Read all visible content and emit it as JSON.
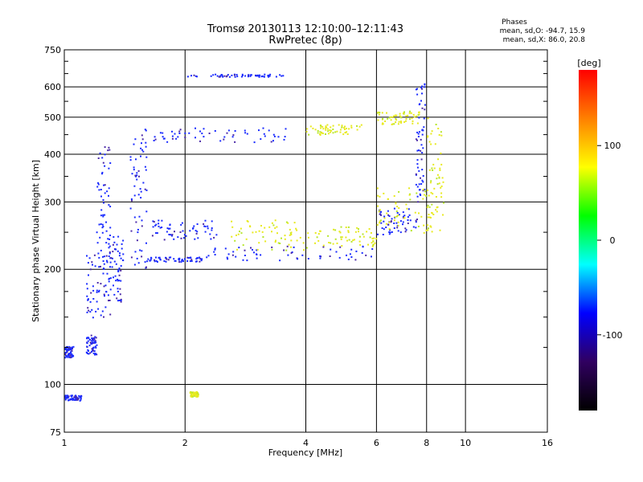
{
  "chart_data": {
    "type": "scatter",
    "title": "Tromsø 20130113 12:10:00–12:11:43",
    "subtitle": "RwPretec (8p)",
    "xlabel": "Frequency [MHz]",
    "ylabel": "Stationary phase Virtual Height [km]",
    "xscale": "log2",
    "yscale": "log",
    "xlim": [
      1,
      16
    ],
    "ylim": [
      75,
      750
    ],
    "grid": true,
    "x_ticks": [
      1,
      2,
      4,
      6,
      8,
      10,
      16
    ],
    "x_tick_labels": [
      "1",
      "2",
      "4",
      "6",
      "8",
      "10",
      "16"
    ],
    "x_gridlines": [
      2,
      4,
      6,
      8,
      10
    ],
    "y_ticks": [
      75,
      100,
      200,
      300,
      400,
      500,
      600,
      750
    ],
    "y_tick_labels": [
      "75",
      "100",
      "200",
      "300",
      "400",
      "500",
      "600",
      "750"
    ],
    "y_gridlines": [
      100,
      200,
      300,
      400,
      500,
      600
    ],
    "phase_box": {
      "title": "Phases",
      "line1": "mean, sd,O: -94.7, 15.9",
      "line2": "mean, sd,X:  86.0, 20.8"
    },
    "colorbar": {
      "label": "[deg]",
      "range": [
        -180,
        180
      ],
      "ticks": [
        100,
        0,
        -100
      ],
      "tick_labels": [
        "100",
        "0",
        "-100"
      ],
      "colors": [
        "#ff0000",
        "#ff8000",
        "#ffff00",
        "#00ff00",
        "#00ffff",
        "#0000ff",
        "#300060",
        "#000000"
      ]
    },
    "series": [
      {
        "mode": "O",
        "color": "#1a2bff",
        "color_secondary": "#4b2aa8",
        "segments": [
          {
            "x": [
              1.0,
              1.1
            ],
            "y": [
              91,
              94
            ]
          },
          {
            "x": [
              1.0,
              1.05
            ],
            "y": [
              118,
              126
            ]
          },
          {
            "x": [
              1.13,
              1.2
            ],
            "y": [
              120,
              135
            ]
          },
          {
            "x": [
              1.13,
              1.3
            ],
            "y": [
              150,
              220
            ]
          },
          {
            "x": [
              1.2,
              1.3
            ],
            "y": [
              210,
              420
            ]
          },
          {
            "x": [
              1.28,
              1.4
            ],
            "y": [
              160,
              250
            ]
          },
          {
            "x": [
              1.45,
              1.6
            ],
            "y": [
              200,
              470
            ]
          },
          {
            "x": [
              1.6,
              2.2
            ],
            "y": [
              210,
              216
            ]
          },
          {
            "x": [
              2.2,
              6.0
            ],
            "y": [
              212,
              232
            ]
          },
          {
            "x": [
              1.6,
              2.4
            ],
            "y": [
              240,
              270
            ]
          },
          {
            "x": [
              1.55,
              3.6
            ],
            "y": [
              430,
              470
            ]
          },
          {
            "x": [
              2.0,
              3.5
            ],
            "y": [
              640,
              650
            ]
          },
          {
            "x": [
              6.0,
              7.6
            ],
            "y": [
              245,
              290
            ]
          },
          {
            "x": [
              7.5,
              7.9
            ],
            "y": [
              300,
              620
            ]
          }
        ]
      },
      {
        "mode": "X",
        "color": "#e8ea20",
        "color_secondary": "#b6e62a",
        "segments": [
          {
            "x": [
              2.6,
              4.0
            ],
            "y": [
              225,
              270
            ]
          },
          {
            "x": [
              4.0,
              6.0
            ],
            "y": [
              228,
              260
            ]
          },
          {
            "x": [
              6.0,
              8.2
            ],
            "y": [
              250,
              330
            ]
          },
          {
            "x": [
              8.0,
              8.8
            ],
            "y": [
              250,
              500
            ]
          },
          {
            "x": [
              4.0,
              5.5
            ],
            "y": [
              450,
              480
            ]
          },
          {
            "x": [
              6.0,
              7.7
            ],
            "y": [
              480,
              520
            ]
          },
          {
            "x": [
              2.05,
              2.15
            ],
            "y": [
              93,
              96
            ]
          }
        ]
      }
    ]
  }
}
